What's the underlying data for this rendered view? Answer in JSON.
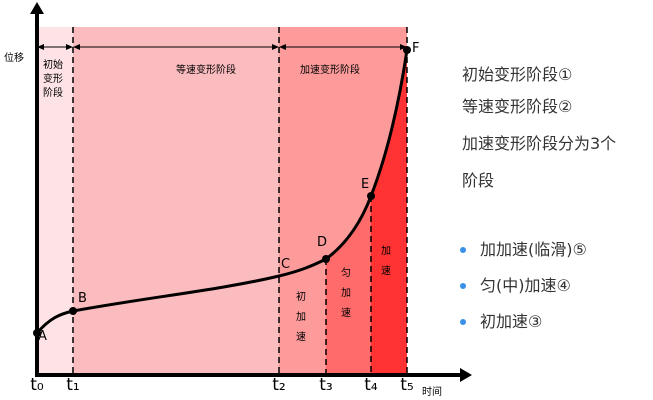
{
  "diagram": {
    "y_axis_label": "位移",
    "x_axis_label": "时间",
    "time_labels": [
      "t₀",
      "t₁",
      "t₂",
      "t₃",
      "t₄",
      "t₅"
    ],
    "points": [
      "A",
      "B",
      "C",
      "D",
      "E",
      "F"
    ],
    "stage_initial": [
      "初始",
      "变形",
      "阶段"
    ],
    "stage_constant": "等速变形阶段",
    "stage_accel": "加速变形阶段",
    "sub_initial": [
      "初",
      "加",
      "速"
    ],
    "sub_uniform": [
      "匀",
      "加",
      "速"
    ],
    "sub_accel": [
      "加",
      "速"
    ],
    "notes": [
      "初始变形阶段①",
      "等速变形阶段②",
      "加速变形阶段分为3个",
      "阶段"
    ],
    "bullets": [
      "加加速(临滑)⑤",
      "匀(中)加速④",
      "初加速③"
    ]
  }
}
